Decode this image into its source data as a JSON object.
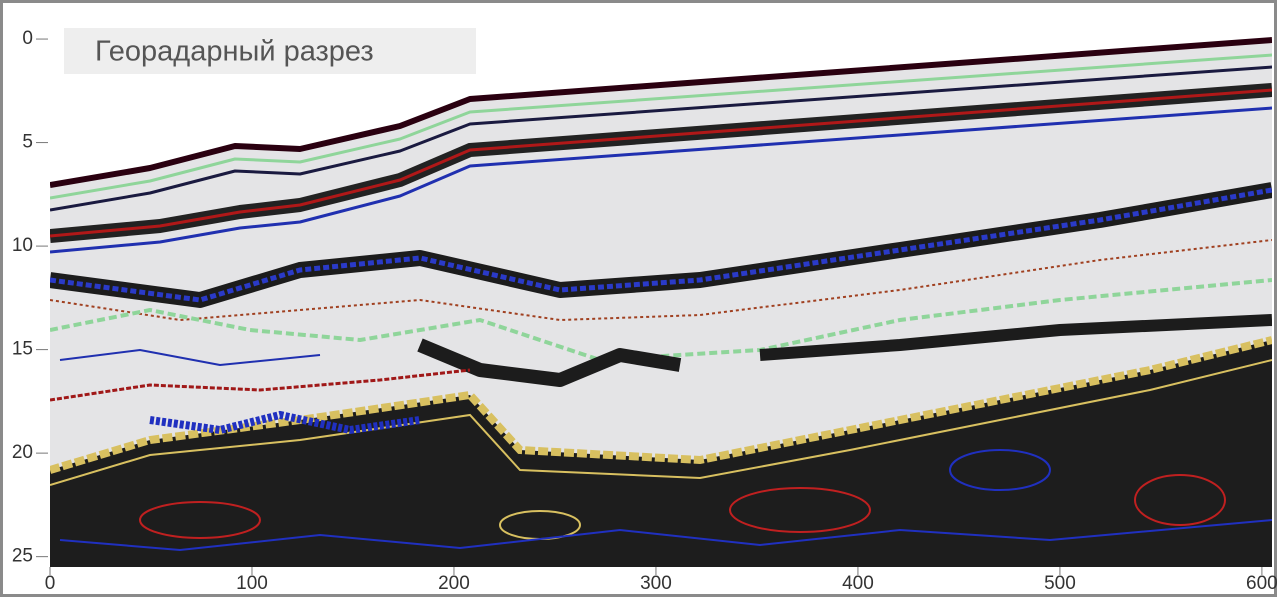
{
  "chart_data": {
    "type": "radargram",
    "title": "Георадарный разрез",
    "xlim": [
      0,
      605
    ],
    "xticks": [
      0,
      100,
      200,
      300,
      400,
      500,
      600
    ],
    "ylim": [
      -1.5,
      25.5
    ],
    "yticks": [
      0,
      5,
      10,
      15,
      20,
      25
    ]
  }
}
